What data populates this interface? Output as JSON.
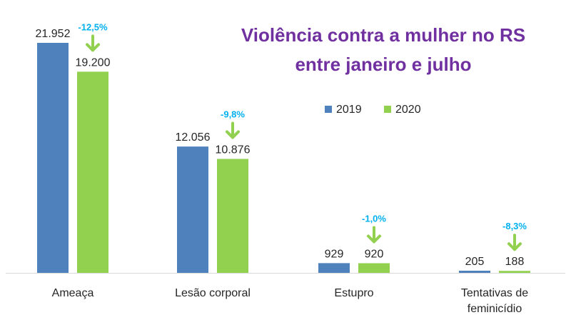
{
  "chart_data": {
    "type": "bar",
    "title": "Violência contra a mulher no RS entre janeiro e julho",
    "title_lines": [
      "Violência contra a mulher no RS",
      "entre janeiro e julho"
    ],
    "categories": [
      "Ameaça",
      "Lesão corporal",
      "Estupro",
      "Tentativas de feminicídio"
    ],
    "category_lines": [
      [
        "Ameaça"
      ],
      [
        "Lesão corporal"
      ],
      [
        "Estupro"
      ],
      [
        "Tentativas de",
        "feminicídio"
      ]
    ],
    "series": [
      {
        "name": "2019",
        "values": [
          21952,
          12056,
          929,
          205
        ],
        "labels": [
          "21.952",
          "12.056",
          "929",
          "205"
        ]
      },
      {
        "name": "2020",
        "values": [
          19200,
          10876,
          920,
          188
        ],
        "labels": [
          "19.200",
          "10.876",
          "920",
          "188"
        ]
      }
    ],
    "annotations": [
      "-12,5%",
      "-9,8%",
      "-1,0%",
      "-8,3%"
    ],
    "xlabel": "",
    "ylabel": "",
    "ylim": [
      0,
      22000
    ],
    "grid": false,
    "legend": "top-right",
    "y_axis_visible": false
  },
  "colors": {
    "series_2019": "#4f81bd",
    "series_2020": "#92d050",
    "title": "#7030a0",
    "annotation": "#00b0f0",
    "arrow": "#92d050",
    "axis": "#d9d9d9",
    "text": "#262626"
  },
  "icons": {
    "decrease_arrow": "arrow-down-icon"
  }
}
